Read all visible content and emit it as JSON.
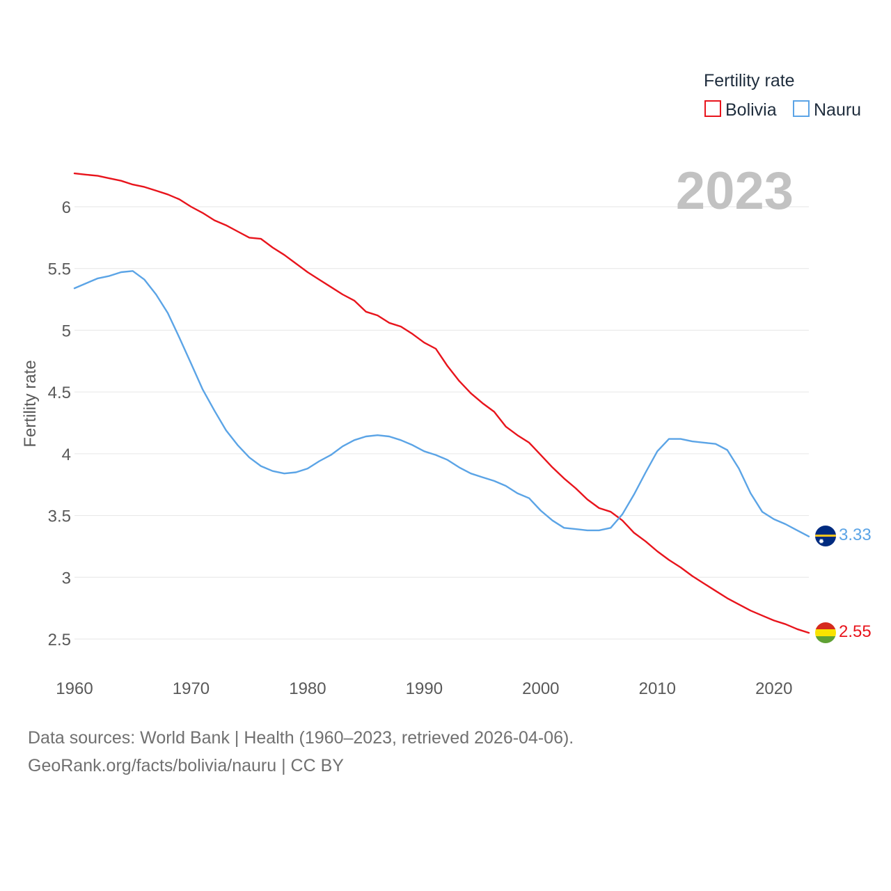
{
  "chart_data": {
    "type": "line",
    "title": "",
    "legend_title": "Fertility rate",
    "legend_position": "top-right",
    "year_label": "2023",
    "xlabel": "",
    "ylabel": "Fertility rate",
    "xlim": [
      1960,
      2023
    ],
    "ylim": [
      2.3,
      6.3
    ],
    "xticks": [
      1960,
      1970,
      1980,
      1990,
      2000,
      2010,
      2020
    ],
    "yticks": [
      2.5,
      3,
      3.5,
      4,
      4.5,
      5,
      5.5,
      6
    ],
    "ytick_labels": [
      "2.5",
      "3",
      "3.5",
      "4",
      "4.5",
      "5",
      "5.5",
      "6"
    ],
    "grid": true,
    "series": [
      {
        "name": "Bolivia",
        "color": "#e8141c",
        "end_label": "2.55",
        "flag": "bolivia-flag",
        "x": [
          1960,
          1961,
          1962,
          1963,
          1964,
          1965,
          1966,
          1967,
          1968,
          1969,
          1970,
          1971,
          1972,
          1973,
          1974,
          1975,
          1976,
          1977,
          1978,
          1979,
          1980,
          1981,
          1982,
          1983,
          1984,
          1985,
          1986,
          1987,
          1988,
          1989,
          1990,
          1991,
          1992,
          1993,
          1994,
          1995,
          1996,
          1997,
          1998,
          1999,
          2000,
          2001,
          2002,
          2003,
          2004,
          2005,
          2006,
          2007,
          2008,
          2009,
          2010,
          2011,
          2012,
          2013,
          2014,
          2015,
          2016,
          2017,
          2018,
          2019,
          2020,
          2021,
          2022,
          2023
        ],
        "values": [
          6.27,
          6.26,
          6.25,
          6.23,
          6.21,
          6.18,
          6.16,
          6.13,
          6.1,
          6.06,
          6.0,
          5.95,
          5.89,
          5.85,
          5.8,
          5.75,
          5.74,
          5.67,
          5.61,
          5.54,
          5.47,
          5.41,
          5.35,
          5.29,
          5.24,
          5.15,
          5.12,
          5.06,
          5.03,
          4.97,
          4.9,
          4.85,
          4.71,
          4.59,
          4.49,
          4.41,
          4.34,
          4.22,
          4.15,
          4.09,
          3.99,
          3.89,
          3.8,
          3.72,
          3.63,
          3.56,
          3.53,
          3.46,
          3.36,
          3.29,
          3.21,
          3.14,
          3.08,
          3.01,
          2.95,
          2.89,
          2.83,
          2.78,
          2.73,
          2.69,
          2.65,
          2.62,
          2.58,
          2.55
        ]
      },
      {
        "name": "Nauru",
        "color": "#5ba4e6",
        "end_label": "3.33",
        "flag": "nauru-flag",
        "x": [
          1960,
          1961,
          1962,
          1963,
          1964,
          1965,
          1966,
          1967,
          1968,
          1969,
          1970,
          1971,
          1972,
          1973,
          1974,
          1975,
          1976,
          1977,
          1978,
          1979,
          1980,
          1981,
          1982,
          1983,
          1984,
          1985,
          1986,
          1987,
          1988,
          1989,
          1990,
          1991,
          1992,
          1993,
          1994,
          1995,
          1996,
          1997,
          1998,
          1999,
          2000,
          2001,
          2002,
          2003,
          2004,
          2005,
          2006,
          2007,
          2008,
          2009,
          2010,
          2011,
          2012,
          2013,
          2014,
          2015,
          2016,
          2017,
          2018,
          2019,
          2020,
          2021,
          2022,
          2023
        ],
        "values": [
          5.34,
          5.38,
          5.42,
          5.44,
          5.47,
          5.48,
          5.41,
          5.29,
          5.14,
          4.94,
          4.73,
          4.52,
          4.35,
          4.19,
          4.07,
          3.97,
          3.9,
          3.86,
          3.84,
          3.85,
          3.88,
          3.94,
          3.99,
          4.06,
          4.11,
          4.14,
          4.15,
          4.14,
          4.11,
          4.07,
          4.02,
          3.99,
          3.95,
          3.89,
          3.84,
          3.81,
          3.78,
          3.74,
          3.68,
          3.64,
          3.54,
          3.46,
          3.4,
          3.39,
          3.38,
          3.38,
          3.4,
          3.51,
          3.67,
          3.85,
          4.02,
          4.12,
          4.12,
          4.1,
          4.09,
          4.08,
          4.03,
          3.88,
          3.68,
          3.53,
          3.47,
          3.43,
          3.38,
          3.33
        ]
      }
    ]
  },
  "footer": {
    "line1": "Data sources: World Bank | Health (1960–2023, retrieved 2026-04-06).",
    "line2": "GeoRank.org/facts/bolivia/nauru | CC BY"
  }
}
